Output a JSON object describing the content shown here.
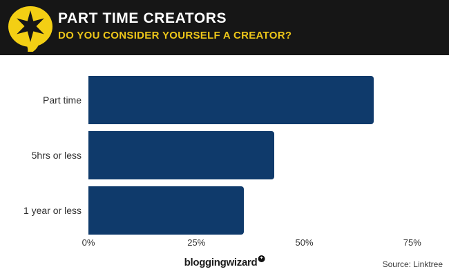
{
  "header": {
    "title": "PART TIME CREATORS",
    "subtitle": "DO YOU CONSIDER YOURSELF A CREATOR?",
    "colors": {
      "background": "#161616",
      "title": "#ffffff",
      "subtitle": "#edc619",
      "logo_bubble": "#f3cf14",
      "logo_star": "#161616"
    }
  },
  "chart_data": {
    "type": "bar",
    "orientation": "horizontal",
    "categories": [
      "Part time",
      "5hrs or less",
      "1 year or less"
    ],
    "values": [
      66,
      43,
      36
    ],
    "unit": "%",
    "x_ticks": [
      "0%",
      "25%",
      "50%",
      "75%"
    ],
    "x_tick_values": [
      0,
      25,
      50,
      75
    ],
    "xlim": [
      0,
      80
    ],
    "bar_color": "#0f3a6b",
    "grid": false,
    "legend": false,
    "title": "PART TIME CREATORS",
    "subtitle": "DO YOU CONSIDER YOURSELF A CREATOR?"
  },
  "footer": {
    "brand": "bloggingwizard",
    "badge_icon": "✦",
    "source": "Source: Linktree"
  }
}
